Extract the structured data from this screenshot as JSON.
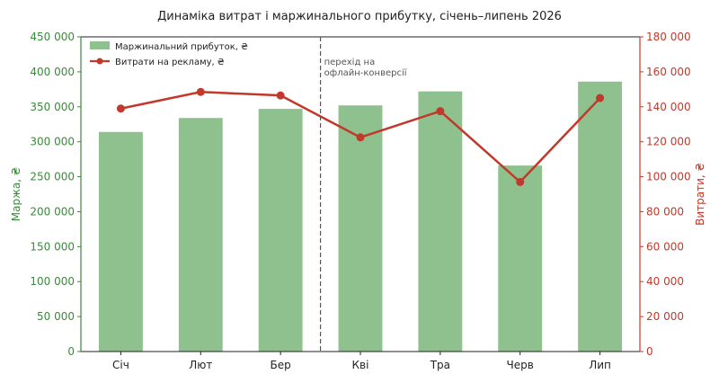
{
  "chart_data": {
    "type": "bar+line",
    "title": "Динаміка витрат і маржинального прибутку, січень–липень 2026",
    "categories": [
      "Січ",
      "Лют",
      "Бер",
      "Кві",
      "Тра",
      "Черв",
      "Лип"
    ],
    "series": [
      {
        "name": "Маржинальний прибуток, ₴",
        "type": "bar",
        "axis": "left",
        "color": "#8fc18f",
        "values": [
          314000,
          334000,
          347000,
          352000,
          372000,
          266000,
          386000
        ]
      },
      {
        "name": "Витрати на рекламу, ₴",
        "type": "line",
        "axis": "right",
        "color": "#c0392b",
        "values": [
          139000,
          148500,
          146500,
          122500,
          137500,
          97000,
          145000
        ]
      }
    ],
    "ylabel_left": "Маржа, ₴",
    "ylabel_right": "Витрати, ₴",
    "ylim_left": [
      0,
      450000
    ],
    "ylim_right": [
      0,
      180000
    ],
    "yticks_left": [
      "0",
      "50 000",
      "100 000",
      "150 000",
      "200 000",
      "250 000",
      "300 000",
      "350 000",
      "400 000",
      "450 000"
    ],
    "yticks_right": [
      "0",
      "20 000",
      "40 000",
      "60 000",
      "80 000",
      "100 000",
      "120 000",
      "140 000",
      "160 000",
      "180 000"
    ],
    "grid": false,
    "legend": "top-left",
    "annotation": {
      "after_category": "Бер",
      "lines": [
        "перехід на",
        "офлайн-конверсії"
      ]
    },
    "colors": {
      "left_axis": "#3a8a3a",
      "right_axis": "#c0392b"
    }
  }
}
